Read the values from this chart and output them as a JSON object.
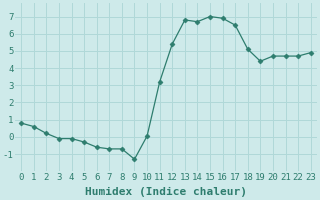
{
  "x": [
    0,
    1,
    2,
    3,
    4,
    5,
    6,
    7,
    8,
    9,
    10,
    11,
    12,
    13,
    14,
    15,
    16,
    17,
    18,
    19,
    20,
    21,
    22,
    23
  ],
  "y": [
    0.8,
    0.6,
    0.2,
    -0.1,
    -0.1,
    -0.3,
    -0.6,
    -0.7,
    -0.7,
    -1.3,
    0.05,
    3.2,
    5.4,
    6.8,
    6.7,
    7.0,
    6.9,
    6.5,
    5.1,
    4.4,
    4.7,
    4.7,
    4.7,
    4.9
  ],
  "line_color": "#2e7d6e",
  "marker": "D",
  "marker_size": 2.5,
  "bg_color": "#ceeaea",
  "grid_color": "#b0d8d8",
  "xlabel": "Humidex (Indice chaleur)",
  "ylim": [
    -2,
    7.8
  ],
  "xlim": [
    -0.5,
    23.5
  ],
  "yticks": [
    -1,
    0,
    1,
    2,
    3,
    4,
    5,
    6,
    7
  ],
  "xticks": [
    0,
    1,
    2,
    3,
    4,
    5,
    6,
    7,
    8,
    9,
    10,
    11,
    12,
    13,
    14,
    15,
    16,
    17,
    18,
    19,
    20,
    21,
    22,
    23
  ],
  "tick_fontsize": 6.5,
  "xlabel_fontsize": 8,
  "tick_color": "#2e7d6e",
  "label_color": "#2e7d6e"
}
